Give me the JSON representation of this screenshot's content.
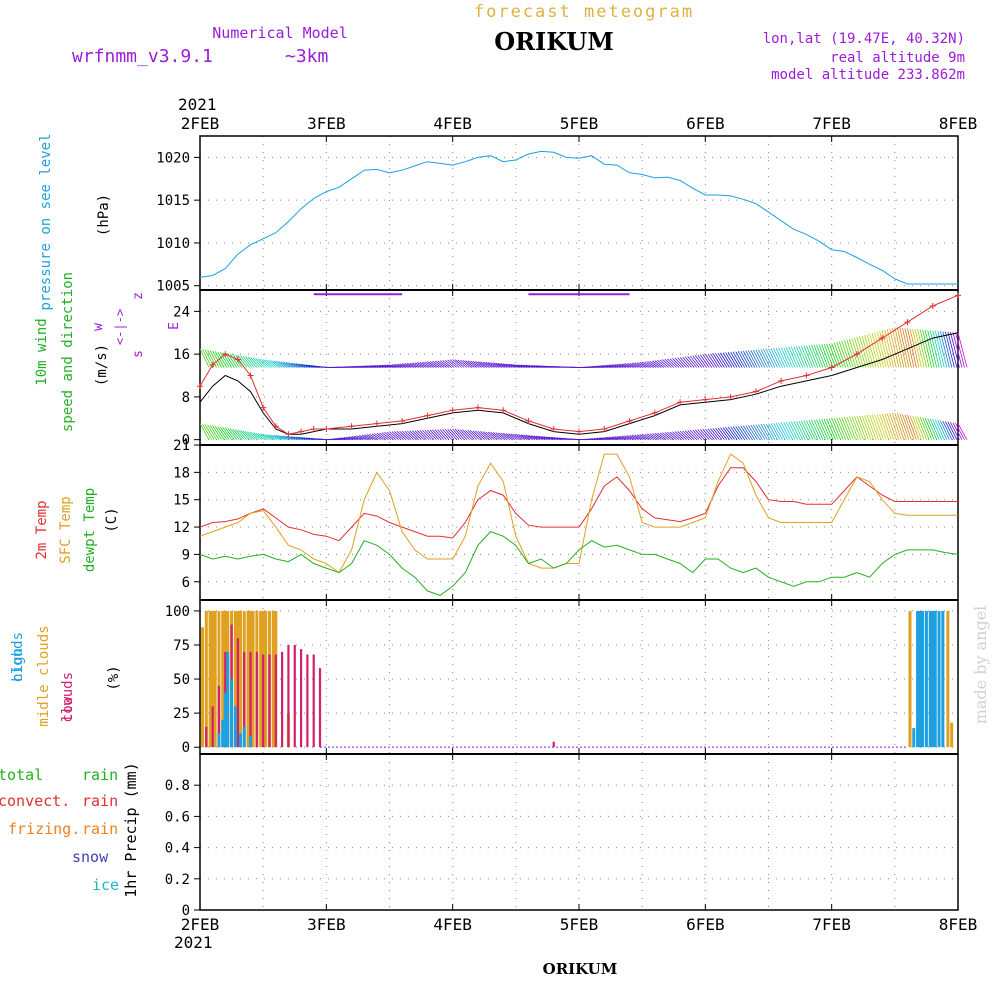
{
  "header": {
    "forecast_title": "forecast meteogram",
    "station": "ORIKUM",
    "model_label": "Numerical Model",
    "model_name": "wrfnmm_v3.9.1",
    "resolution": "~3km",
    "lonlat": "lon,lat (19.47E, 40.32N)",
    "real_altitude": "real altitude 9m",
    "model_altitude": "model altitude  233.862m"
  },
  "footer": {
    "station": "ORIKUM",
    "credit": "made by angel"
  },
  "colors": {
    "pressure": "#1ca0e0",
    "wind_green": "#22b022",
    "wind_purple": "#9c1cd8",
    "temp_red": "#e03030",
    "temp_orange": "#e0a020",
    "temp_green": "#22b022",
    "cloud_high": "#1ca0e0",
    "cloud_mid": "#e0a020",
    "cloud_low": "#d0206e",
    "rain_total": "#22b022",
    "rain_convect": "#e03030",
    "rain_freeze": "#f08020",
    "snow": "#4040c0",
    "ice": "#20b8c8",
    "title_orange": "#e0b040",
    "purple_text": "#9c1cd8"
  },
  "time_axis": {
    "year": "2021",
    "ticks": [
      "2FEB",
      "3FEB",
      "4FEB",
      "5FEB",
      "6FEB",
      "7FEB",
      "8FEB"
    ]
  },
  "chart_data": [
    {
      "type": "line",
      "panel": "pressure",
      "ylabel": [
        "pressure on see level",
        "(hPa)"
      ],
      "ylim": [
        1004.5,
        1022.5
      ],
      "yticks": [
        1005,
        1010,
        1015,
        1020
      ],
      "x_unit": "days since 2FEB 00UTC",
      "series": [
        {
          "name": "pressure",
          "x": [
            0,
            0.1,
            0.2,
            0.3,
            0.4,
            0.5,
            0.6,
            0.7,
            0.8,
            0.9,
            1.0,
            1.1,
            1.2,
            1.3,
            1.4,
            1.5,
            1.6,
            1.7,
            1.8,
            1.9,
            2.0,
            2.1,
            2.2,
            2.3,
            2.4,
            2.5,
            2.6,
            2.7,
            2.8,
            2.9,
            3.0,
            3.1,
            3.2,
            3.3,
            3.4,
            3.5,
            3.6,
            3.7,
            3.8,
            3.9,
            4.0,
            4.1,
            4.2,
            4.3,
            4.4,
            4.5,
            4.6,
            4.7,
            4.8,
            4.9,
            5.0,
            5.1,
            5.2,
            5.3,
            5.4,
            5.5,
            5.6,
            5.7,
            5.8,
            5.9,
            6.0
          ],
          "values": [
            1006,
            1006.2,
            1007,
            1008.7,
            1009.8,
            1010.5,
            1011.2,
            1012.5,
            1014,
            1015.2,
            1016,
            1016.5,
            1017.5,
            1018.5,
            1018.6,
            1018.2,
            1018.5,
            1019,
            1019.5,
            1019.3,
            1019.1,
            1019.5,
            1020,
            1020.2,
            1019.5,
            1019.7,
            1020.4,
            1020.7,
            1020.6,
            1020,
            1019.9,
            1020.2,
            1019.2,
            1019.1,
            1018.2,
            1018,
            1017.6,
            1017.7,
            1017.3,
            1016.4,
            1015.6,
            1015.6,
            1015.5,
            1015.1,
            1014.6,
            1013.6,
            1012.6,
            1011.6,
            1011,
            1010.2,
            1009.2,
            1009,
            1008.3,
            1007.5,
            1006.8,
            1005.8,
            1005.2,
            1005.2,
            1005.2,
            1005.2,
            1005.2
          ]
        }
      ]
    },
    {
      "type": "line",
      "panel": "wind",
      "ylabel": [
        "10m wind",
        "speed and direction",
        "(m/s)"
      ],
      "direction_legend": [
        "w",
        "<-|->",
        "s",
        "z",
        "E"
      ],
      "ylim": [
        -1,
        28
      ],
      "yticks": [
        0,
        8,
        16,
        24
      ],
      "x_unit": "days since 2FEB 00UTC",
      "series": [
        {
          "name": "speed",
          "x": [
            0,
            0.1,
            0.2,
            0.3,
            0.4,
            0.5,
            0.6,
            0.7,
            0.8,
            0.9,
            1.0,
            1.2,
            1.4,
            1.6,
            1.8,
            2.0,
            2.2,
            2.4,
            2.6,
            2.8,
            3.0,
            3.2,
            3.4,
            3.6,
            3.8,
            4.0,
            4.2,
            4.4,
            4.6,
            4.8,
            5.0,
            5.2,
            5.4,
            5.6,
            5.8,
            6.0
          ],
          "values": [
            7,
            10,
            12,
            11,
            9,
            5,
            2,
            1,
            1,
            1.5,
            2,
            2,
            2.5,
            3,
            4,
            5,
            5.5,
            5,
            3,
            1.5,
            1,
            1.5,
            3,
            4.5,
            6.5,
            7,
            7.5,
            8.5,
            10,
            11,
            12,
            13.5,
            15,
            17,
            19,
            20
          ]
        },
        {
          "name": "gust",
          "x": [
            0,
            0.1,
            0.2,
            0.3,
            0.4,
            0.5,
            0.6,
            0.7,
            0.8,
            0.9,
            1.0,
            1.2,
            1.4,
            1.6,
            1.8,
            2.0,
            2.2,
            2.4,
            2.6,
            2.8,
            3.0,
            3.2,
            3.4,
            3.6,
            3.8,
            4.0,
            4.2,
            4.4,
            4.6,
            4.8,
            5.0,
            5.2,
            5.4,
            5.6,
            5.8,
            6.0
          ],
          "values": [
            10,
            14,
            16,
            15,
            12,
            6,
            2.5,
            1,
            1.5,
            2,
            2,
            2.5,
            3,
            3.5,
            4.5,
            5.5,
            6,
            5.5,
            3.5,
            2,
            1.5,
            2,
            3.5,
            5,
            7,
            7.5,
            8,
            9,
            11,
            12,
            13.5,
            16,
            19,
            22,
            25,
            27
          ]
        }
      ],
      "barb_band_upper": {
        "x": [
          0,
          0.5,
          1,
          1.5,
          2,
          2.5,
          3,
          3.5,
          4,
          4.5,
          5,
          5.5,
          6
        ],
        "values": [
          17,
          15,
          13.5,
          14,
          15,
          14,
          13.5,
          14.5,
          16,
          17,
          18,
          21,
          20
        ]
      },
      "barb_band_lower": {
        "x": [
          0,
          0.5,
          1,
          1.5,
          2,
          2.5,
          3,
          3.5,
          4,
          4.5,
          5,
          5.5,
          6
        ],
        "values": [
          3,
          1,
          0,
          1.5,
          2,
          1,
          0,
          1,
          2,
          3,
          4,
          5,
          3
        ]
      }
    },
    {
      "type": "line",
      "panel": "temperature",
      "ylabel": [
        "2m Temp",
        "SFC Temp",
        "dewpt Temp",
        "(C)"
      ],
      "ylim": [
        4,
        21
      ],
      "yticks": [
        6,
        9,
        12,
        15,
        18,
        21
      ],
      "x_unit": "days since 2FEB 00UTC",
      "series": [
        {
          "name": "2m Temp",
          "x": [
            0,
            0.1,
            0.2,
            0.3,
            0.4,
            0.5,
            0.6,
            0.7,
            0.8,
            0.9,
            1.0,
            1.1,
            1.2,
            1.3,
            1.4,
            1.5,
            1.6,
            1.7,
            1.8,
            1.9,
            2.0,
            2.1,
            2.2,
            2.3,
            2.4,
            2.5,
            2.6,
            2.7,
            2.8,
            2.9,
            3.0,
            3.1,
            3.2,
            3.3,
            3.4,
            3.5,
            3.6,
            3.7,
            3.8,
            3.9,
            4.0,
            4.1,
            4.2,
            4.3,
            4.4,
            4.5,
            4.6,
            4.7,
            4.8,
            4.9,
            5.0,
            5.1,
            5.2,
            5.3,
            5.4,
            5.5,
            5.6,
            5.7,
            5.8,
            5.9,
            6.0
          ],
          "values": [
            12,
            12.5,
            12.6,
            12.9,
            13.5,
            14,
            13,
            12,
            11.7,
            11.2,
            11,
            10.5,
            12,
            13.5,
            13.2,
            12.5,
            12,
            11.5,
            11,
            11,
            10.8,
            12.5,
            15,
            16,
            15.5,
            13.5,
            12.2,
            12,
            12,
            12,
            12,
            14,
            16.5,
            17.5,
            16,
            14,
            13,
            12.8,
            12.6,
            13,
            13.5,
            16.5,
            18.5,
            18.5,
            17,
            15,
            14.8,
            14.8,
            14.5,
            14.5,
            14.5,
            16,
            17.5,
            16.5,
            15.5,
            14.8,
            14.8,
            14.8,
            14.8,
            14.8,
            14.8
          ]
        },
        {
          "name": "SFC Temp",
          "x": [
            0,
            0.1,
            0.2,
            0.3,
            0.4,
            0.5,
            0.6,
            0.7,
            0.8,
            0.9,
            1.0,
            1.1,
            1.2,
            1.3,
            1.4,
            1.5,
            1.6,
            1.7,
            1.8,
            1.9,
            2.0,
            2.1,
            2.2,
            2.3,
            2.4,
            2.5,
            2.6,
            2.7,
            2.8,
            2.9,
            3.0,
            3.1,
            3.2,
            3.3,
            3.4,
            3.5,
            3.6,
            3.7,
            3.8,
            3.9,
            4.0,
            4.1,
            4.2,
            4.3,
            4.4,
            4.5,
            4.6,
            4.7,
            4.8,
            4.9,
            5.0,
            5.1,
            5.2,
            5.3,
            5.4,
            5.5,
            5.6,
            5.7,
            5.8,
            5.9,
            6.0
          ],
          "values": [
            11,
            11.5,
            12,
            12.5,
            13.5,
            13.8,
            12,
            10,
            9.5,
            8.5,
            8,
            7,
            9.5,
            15,
            18,
            16,
            11.5,
            9.5,
            8.5,
            8.5,
            8.5,
            11,
            16.5,
            19,
            17,
            11,
            8,
            7.5,
            7.5,
            8,
            8,
            15,
            20,
            20,
            17.5,
            12.5,
            12,
            12,
            12,
            12.5,
            13,
            17,
            20,
            19,
            15.5,
            13,
            12.5,
            12.5,
            12.5,
            12.5,
            12.5,
            15,
            17.5,
            17,
            15,
            13.5,
            13.3,
            13.3,
            13.3,
            13.3,
            13.3
          ]
        },
        {
          "name": "dewpt Temp",
          "x": [
            0,
            0.1,
            0.2,
            0.3,
            0.4,
            0.5,
            0.6,
            0.7,
            0.8,
            0.9,
            1.0,
            1.1,
            1.2,
            1.3,
            1.4,
            1.5,
            1.6,
            1.7,
            1.8,
            1.9,
            2.0,
            2.1,
            2.2,
            2.3,
            2.4,
            2.5,
            2.6,
            2.7,
            2.8,
            2.9,
            3.0,
            3.1,
            3.2,
            3.3,
            3.4,
            3.5,
            3.6,
            3.7,
            3.8,
            3.9,
            4.0,
            4.1,
            4.2,
            4.3,
            4.4,
            4.5,
            4.6,
            4.7,
            4.8,
            4.9,
            5.0,
            5.1,
            5.2,
            5.3,
            5.4,
            5.5,
            5.6,
            5.7,
            5.8,
            5.9,
            6.0
          ],
          "values": [
            9,
            8.5,
            8.8,
            8.5,
            8.8,
            9,
            8.5,
            8.2,
            9,
            8,
            7.5,
            7,
            8,
            10.5,
            10,
            9,
            7.5,
            6.5,
            5,
            4.5,
            5.5,
            7,
            10,
            11.5,
            11,
            10,
            8,
            8.5,
            7.5,
            8,
            9.5,
            10.5,
            9.8,
            10,
            9.5,
            9,
            9,
            8.5,
            8,
            7,
            8.5,
            8.5,
            7.5,
            7,
            7.5,
            6.5,
            6,
            5.5,
            6,
            6,
            6.5,
            6.5,
            7,
            6.5,
            8,
            9,
            9.5,
            9.5,
            9.5,
            9.2,
            9
          ]
        }
      ]
    },
    {
      "type": "bar",
      "panel": "clouds",
      "ylabel": [
        "high",
        "clouds",
        "midle clouds",
        "low",
        "clouds",
        "(%)"
      ],
      "ylim": [
        -5,
        108
      ],
      "yticks": [
        0,
        25,
        50,
        75,
        100
      ],
      "x_unit": "days since 2FEB 00UTC",
      "series": [
        {
          "name": "high clouds",
          "x": [
            0.15,
            0.18,
            0.2,
            0.22,
            0.25,
            0.28,
            0.32,
            0.35,
            0.4,
            5.65,
            5.68,
            5.7,
            5.72,
            5.75,
            5.78,
            5.8,
            5.82,
            5.85,
            5.88
          ],
          "values": [
            10,
            20,
            40,
            70,
            50,
            30,
            10,
            15,
            8,
            14,
            100,
            100,
            100,
            100,
            100,
            100,
            100,
            100,
            100
          ]
        },
        {
          "name": "midle clouds",
          "x": [
            0.02,
            0.05,
            0.08,
            0.1,
            0.12,
            0.15,
            0.18,
            0.2,
            0.22,
            0.25,
            0.28,
            0.3,
            0.32,
            0.35,
            0.38,
            0.4,
            0.42,
            0.45,
            0.48,
            0.5,
            0.52,
            0.55,
            0.58,
            0.6,
            0.7,
            5.62,
            5.92,
            5.95
          ],
          "values": [
            88,
            100,
            100,
            100,
            100,
            100,
            100,
            100,
            100,
            100,
            100,
            100,
            100,
            100,
            100,
            100,
            100,
            100,
            100,
            100,
            100,
            100,
            100,
            100,
            25,
            100,
            100,
            18
          ]
        },
        {
          "name": "low clouds",
          "x": [
            0.05,
            0.1,
            0.15,
            0.2,
            0.25,
            0.3,
            0.35,
            0.4,
            0.45,
            0.5,
            0.55,
            0.6,
            0.65,
            0.7,
            0.75,
            0.8,
            0.85,
            0.9,
            0.95,
            2.8
          ],
          "values": [
            15,
            30,
            45,
            70,
            90,
            80,
            70,
            70,
            70,
            68,
            68,
            68,
            70,
            75,
            75,
            72,
            68,
            68,
            58,
            4
          ]
        }
      ]
    },
    {
      "type": "line",
      "panel": "precip",
      "ylabel": [
        "1hr Precip (mm)"
      ],
      "legend": [
        "total",
        "rain",
        "convect.",
        "rain",
        "frizing.",
        "rain",
        "snow",
        "ice"
      ],
      "ylim": [
        0,
        1.0
      ],
      "yticks": [
        "0",
        "0.2",
        "0.4",
        "0.6",
        "0.8"
      ],
      "series": []
    }
  ]
}
